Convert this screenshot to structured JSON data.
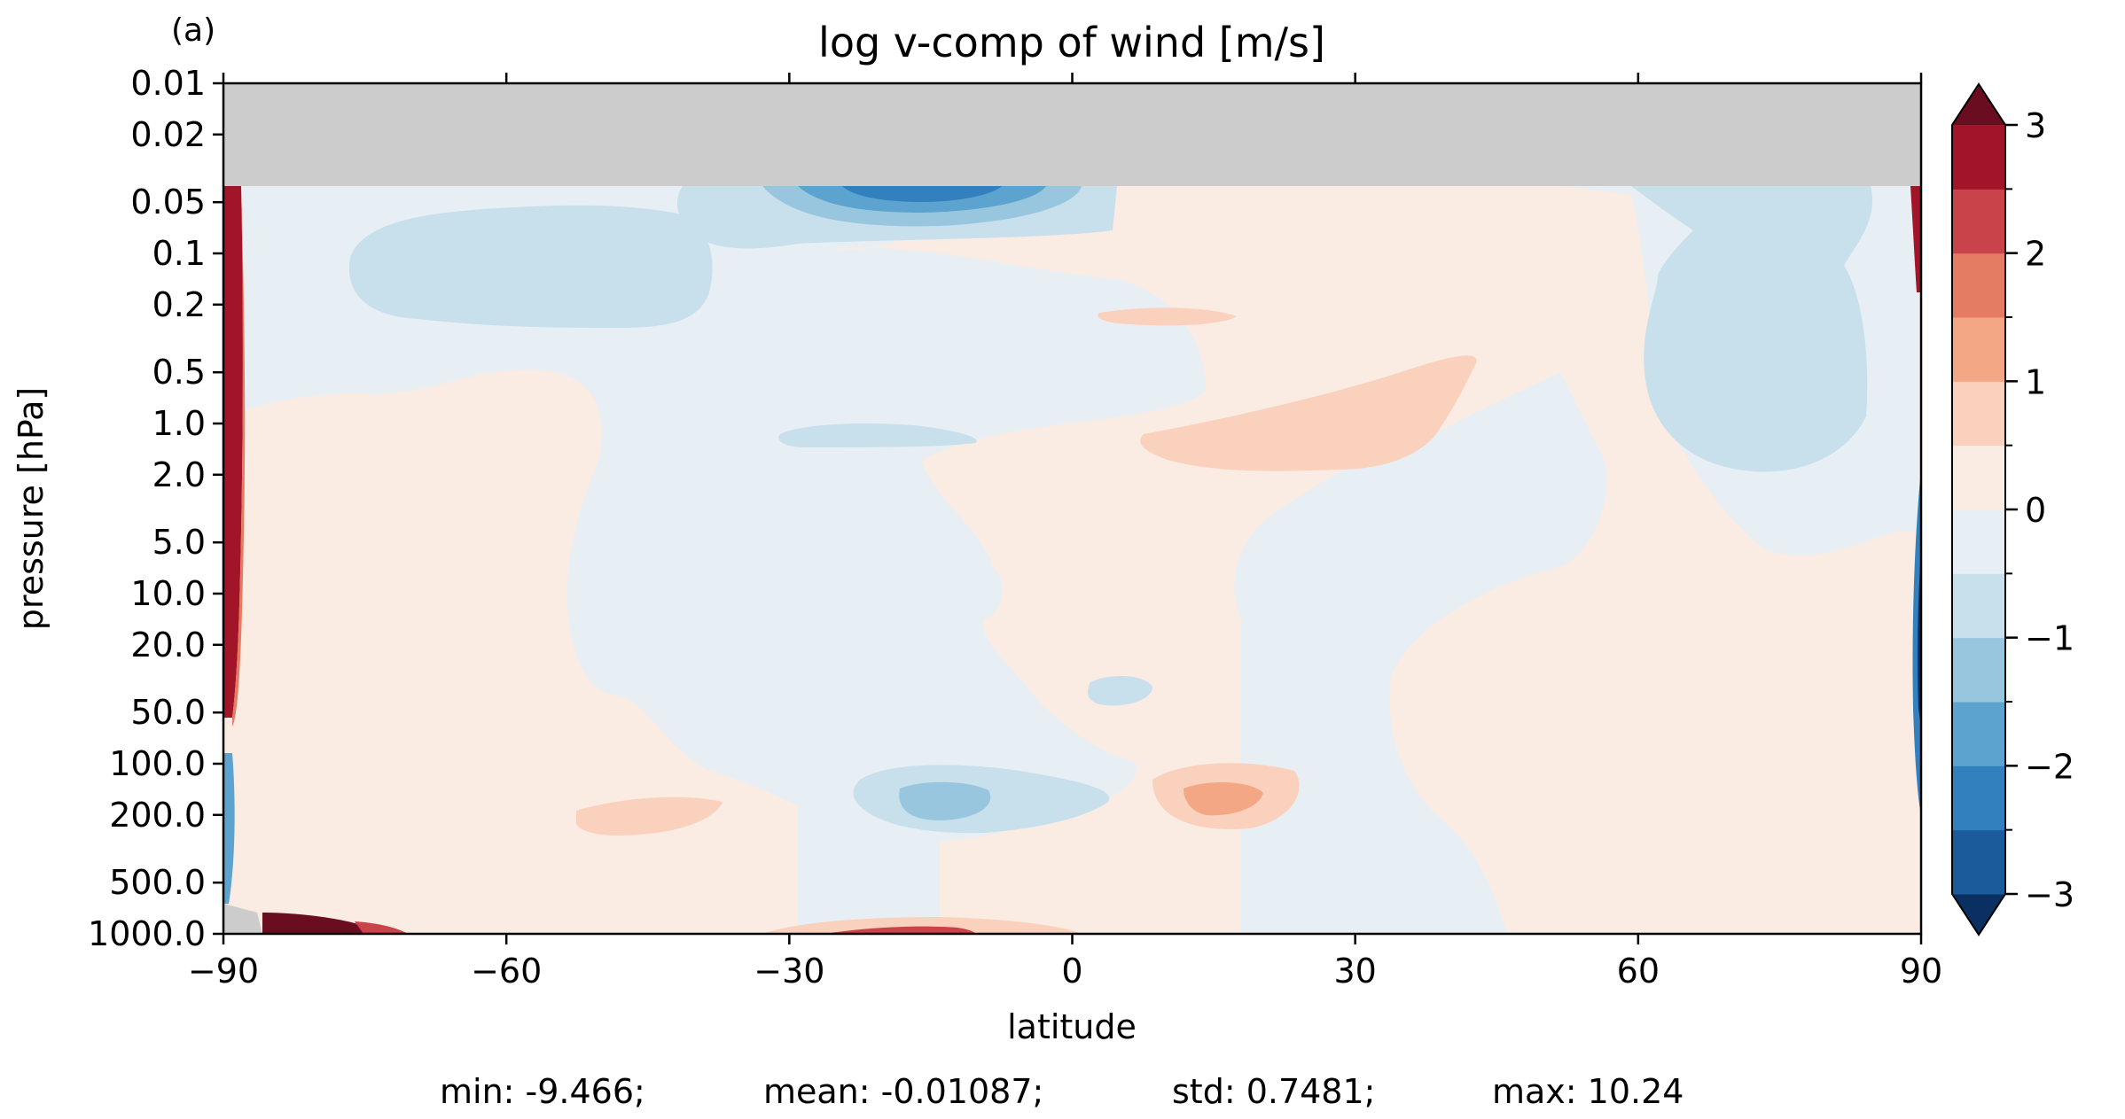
{
  "panel_label": "(a)",
  "chart_data": {
    "type": "heatmap",
    "title": "log v-comp of wind [m/s]",
    "xlabel": "latitude",
    "ylabel": "pressure [hPa]",
    "xlim": [
      -90,
      90
    ],
    "ylim": [
      1000.0,
      0.01
    ],
    "y_scale": "log",
    "x_ticks": [
      -90,
      -60,
      -30,
      0,
      30,
      60,
      90
    ],
    "x_tick_labels": [
      "−90",
      "−60",
      "−30",
      "0",
      "30",
      "60",
      "90"
    ],
    "y_ticks": [
      0.01,
      0.02,
      0.05,
      0.1,
      0.2,
      0.5,
      1.0,
      2.0,
      5.0,
      10.0,
      20.0,
      50.0,
      100.0,
      200.0,
      500.0,
      1000.0
    ],
    "y_tick_labels": [
      "0.01",
      "0.02",
      "0.05",
      "0.1",
      "0.2",
      "0.5",
      "1.0",
      "2.0",
      "5.0",
      "10.0",
      "20.0",
      "50.0",
      "100.0",
      "200.0",
      "500.0",
      "1000.0"
    ],
    "no_data_above_hPa": 0.06,
    "no_data_color": "#cccccc",
    "colorbar": {
      "levels": [
        -3,
        -2.5,
        -2,
        -1.5,
        -1,
        -0.5,
        0,
        0.5,
        1,
        1.5,
        2,
        2.5,
        3
      ],
      "tick_values": [
        -3,
        -2,
        -1,
        0,
        1,
        2,
        3
      ],
      "tick_labels": [
        "−3",
        "−2",
        "−1",
        "0",
        "1",
        "2",
        "3"
      ],
      "colors": [
        "#1b5a9b",
        "#3280bd",
        "#5ca3cf",
        "#99c6df",
        "#c8dfec",
        "#e8eff4",
        "#faebe3",
        "#fad1bd",
        "#f4a784",
        "#e37c62",
        "#c8444a",
        "#a21528"
      ],
      "under_color": "#093061",
      "over_color": "#6a0d21",
      "extend": "both"
    },
    "field_regions": [
      {
        "label": "v≈+0.3",
        "lat": [
          -85,
          -60
        ],
        "p": [
          0.5,
          500
        ]
      },
      {
        "label": "v≈-0.3",
        "lat": [
          -60,
          -30
        ],
        "p": [
          0.08,
          0.25
        ]
      },
      {
        "label": "v≈-1.5",
        "lat": [
          -20,
          -10
        ],
        "p": [
          0.055,
          0.06
        ]
      },
      {
        "label": "v≈+0.7",
        "lat": [
          8,
          43
        ],
        "p": [
          0.5,
          2.0
        ]
      },
      {
        "label": "v≈-0.3",
        "lat": [
          60,
          80
        ],
        "p": [
          0.1,
          2.0
        ]
      },
      {
        "label": "v≈-1.2",
        "lat": [
          -18,
          -9
        ],
        "p": [
          160,
          230
        ]
      },
      {
        "label": "v≈+1.2",
        "lat": [
          12,
          20
        ],
        "p": [
          170,
          230
        ]
      },
      {
        "label": "v≈+3",
        "lat": [
          -90,
          -89
        ],
        "p": [
          0.055,
          50
        ]
      },
      {
        "label": "v≈-3",
        "lat": [
          89,
          90
        ],
        "p": [
          5,
          50
        ]
      }
    ]
  },
  "stats": {
    "min": "min: -9.466;",
    "mean": "mean: -0.01087;",
    "std": "std: 0.7481;",
    "max": "max: 10.24"
  }
}
